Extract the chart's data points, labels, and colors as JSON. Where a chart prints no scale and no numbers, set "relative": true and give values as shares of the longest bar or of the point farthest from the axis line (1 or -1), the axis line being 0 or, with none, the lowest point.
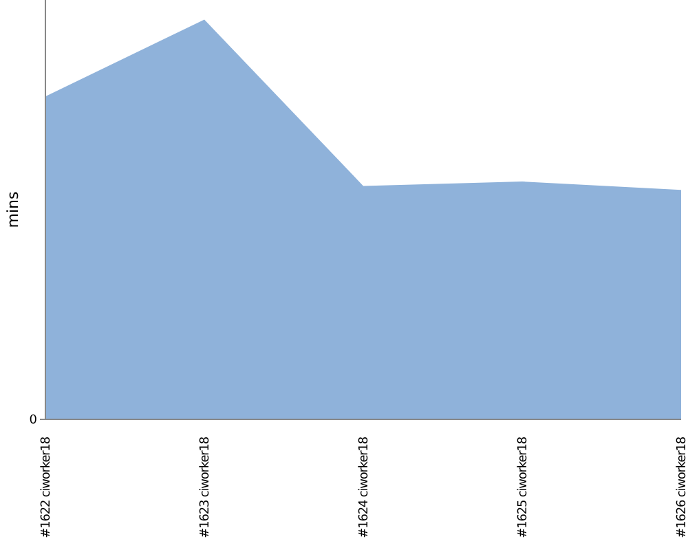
{
  "chart_data": {
    "type": "area",
    "relative": true,
    "ylabel": "mins",
    "annotations": [
      "0"
    ],
    "categories": [
      "#1622 ciworker18",
      "#1623 ciworker18",
      "#1624 ciworker18",
      "#1625 ciworker18",
      "#1626 ciworker18"
    ],
    "series": [
      {
        "color": "#8fb2da",
        "values": [
          0.808,
          1,
          0.584,
          0.595,
          0.574
        ]
      }
    ]
  }
}
